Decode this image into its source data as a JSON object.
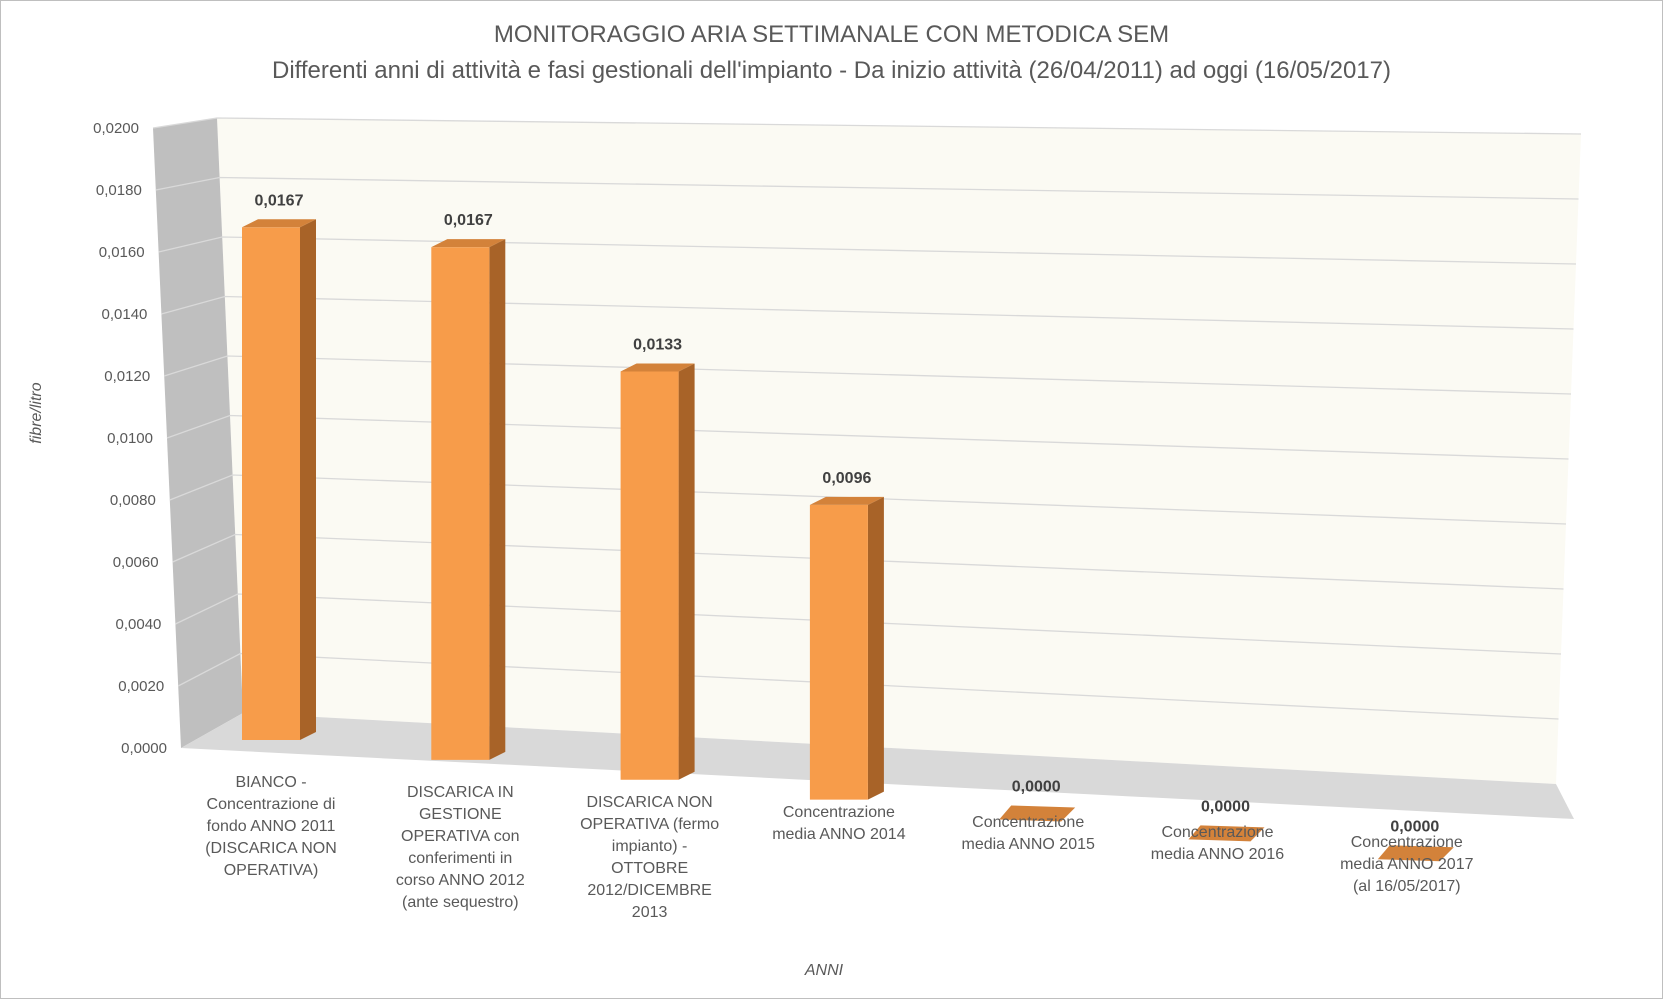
{
  "chart_data": {
    "type": "bar",
    "title": "MONITORAGGIO ARIA SETTIMANALE CON METODICA SEM",
    "subtitle": "Differenti anni di attività e fasi gestionali dell'impianto - Da inizio attività (26/04/2011) ad oggi (16/05/2017)",
    "xlabel": "ANNI",
    "ylabel": "fibre/litro",
    "ylim": [
      0,
      0.02
    ],
    "y_ticks": [
      "0,0000",
      "0,0020",
      "0,0040",
      "0,0060",
      "0,0080",
      "0,0100",
      "0,0120",
      "0,0140",
      "0,0160",
      "0,0180",
      "0,0200"
    ],
    "grid": true,
    "legend": "none",
    "categories": [
      [
        "BIANCO -",
        "Concentrazione di",
        "fondo ANNO 2011",
        "(DISCARICA NON",
        "OPERATIVA)"
      ],
      [
        "DISCARICA IN",
        "GESTIONE",
        "OPERATIVA con",
        "conferimenti in",
        "corso ANNO 2012",
        "(ante sequestro)"
      ],
      [
        "DISCARICA NON",
        "OPERATIVA (fermo",
        "impianto) -",
        "OTTOBRE",
        "2012/DICEMBRE",
        "2013"
      ],
      [
        "Concentrazione",
        "media ANNO 2014"
      ],
      [
        "Concentrazione",
        "media ANNO 2015"
      ],
      [
        "Concentrazione",
        "media ANNO 2016"
      ],
      [
        "Concentrazione",
        "media ANNO 2017",
        "(al 16/05/2017)"
      ]
    ],
    "values": [
      0.0167,
      0.0167,
      0.0133,
      0.0096,
      0.0,
      0.0,
      0.0
    ],
    "data_labels": [
      "0,0167",
      "0,0167",
      "0,0133",
      "0,0096",
      "0,0000",
      "0,0000",
      "0,0000"
    ],
    "colors": {
      "bar_front": "#f79c4a",
      "bar_side": "#a86328",
      "bar_top": "#d3823a",
      "back_wall": "#fbfaf3",
      "side_wall": "#bfbfbf",
      "floor": "#d9d9d9",
      "grid": "#d9d9d9"
    }
  }
}
